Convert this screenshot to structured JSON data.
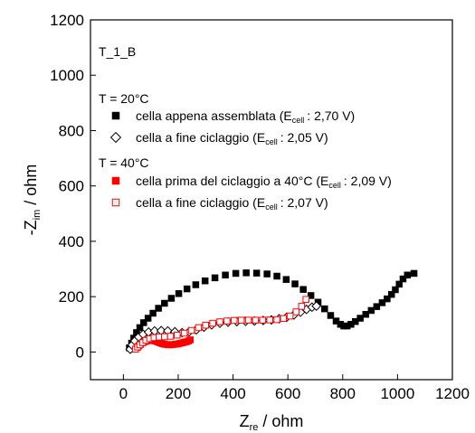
{
  "chart_data": {
    "type": "scatter",
    "sample_label": "T_1_B",
    "xlabel": {
      "main": "Z",
      "sub": "re",
      "rest": " / ohm"
    },
    "ylabel": {
      "main": "-Z",
      "sub": "im",
      "rest": " / ohm"
    },
    "xlim": [
      -120,
      1200
    ],
    "ylim": [
      -100,
      1200
    ],
    "xticks": [
      "0",
      "200",
      "400",
      "600",
      "800",
      "1000",
      "1200"
    ],
    "yticks": [
      "0",
      "200",
      "400",
      "600",
      "800",
      "1000",
      "1200"
    ],
    "legend_position": "top-left",
    "legend_groups": [
      {
        "heading": "T = 20°C",
        "series_index": [
          0,
          1
        ]
      },
      {
        "heading": "T = 40°C",
        "series_index": [
          2,
          3
        ]
      }
    ],
    "series": [
      {
        "label_main": "cella appena assemblata (E",
        "label_sub": "cell",
        "label_rest": ": 2,70 V)",
        "marker": "square",
        "filled": true,
        "color": "#000000",
        "x": [
          22,
          30,
          38,
          48,
          60,
          74,
          90,
          108,
          128,
          150,
          175,
          202,
          232,
          264,
          298,
          334,
          372,
          410,
          448,
          486,
          524,
          560,
          594,
          626,
          656,
          684,
          710,
          734,
          756,
          776,
          792,
          804,
          816,
          830,
          846,
          864,
          884,
          904,
          924,
          944,
          962,
          978,
          992,
          1006,
          1020,
          1036,
          1060
        ],
        "y": [
          15,
          32,
          50,
          70,
          88,
          106,
          122,
          140,
          158,
          176,
          194,
          211,
          228,
          243,
          257,
          268,
          278,
          284,
          286,
          285,
          282,
          274,
          262,
          246,
          226,
          204,
          180,
          156,
          132,
          112,
          100,
          94,
          94,
          100,
          110,
          122,
          136,
          150,
          164,
          178,
          192,
          208,
          225,
          245,
          264,
          278,
          284
        ]
      },
      {
        "label_main": "cella a fine ciclaggio (E",
        "label_sub": "cell",
        "label_rest": ": 2,05 V)",
        "marker": "diamond",
        "filled": false,
        "color": "#000000",
        "x": [
          25,
          32,
          42,
          56,
          72,
          92,
          114,
          138,
          162,
          188,
          214,
          240,
          266,
          294,
          322,
          352,
          382,
          414,
          446,
          478,
          510,
          540,
          568,
          596,
          622,
          646,
          668,
          688,
          704
        ],
        "y": [
          10,
          25,
          40,
          54,
          64,
          72,
          76,
          77,
          76,
          73,
          70,
          73,
          80,
          90,
          98,
          104,
          108,
          110,
          111,
          112,
          114,
          116,
          120,
          126,
          134,
          144,
          154,
          162,
          166
        ]
      },
      {
        "label_main": "cella prima del ciclaggio a 40°C (E",
        "label_sub": "cell",
        "label_rest": ": 2,09 V)",
        "marker": "square",
        "filled": true,
        "color": "#ff0000",
        "x": [
          50,
          56,
          62,
          70,
          78,
          86,
          94,
          102,
          110,
          118,
          126,
          134,
          142,
          150,
          158,
          166,
          174,
          182,
          190,
          198,
          206,
          214,
          222,
          230,
          238,
          244
        ],
        "y": [
          16,
          22,
          28,
          33,
          37,
          40,
          42,
          42,
          41,
          39,
          36,
          33,
          30,
          28,
          27,
          26,
          26,
          27,
          28,
          29,
          31,
          33,
          35,
          37,
          40,
          44
        ]
      },
      {
        "label_main": "cella a fine ciclaggio (E",
        "label_sub": "cell",
        "label_rest": ": 2,07 V)",
        "marker": "square",
        "filled": false,
        "color": "#ff0000",
        "x": [
          44,
          52,
          60,
          70,
          82,
          96,
          112,
          130,
          150,
          172,
          196,
          222,
          248,
          274,
          300,
          326,
          352,
          378,
          404,
          430,
          456,
          482,
          508,
          534,
          560,
          584,
          608,
          630,
          650,
          666
        ],
        "y": [
          10,
          18,
          26,
          34,
          42,
          48,
          52,
          54,
          55,
          57,
          61,
          68,
          78,
          88,
          97,
          104,
          109,
          112,
          114,
          115,
          115,
          115,
          115,
          116,
          117,
          121,
          130,
          145,
          165,
          190
        ]
      }
    ]
  }
}
